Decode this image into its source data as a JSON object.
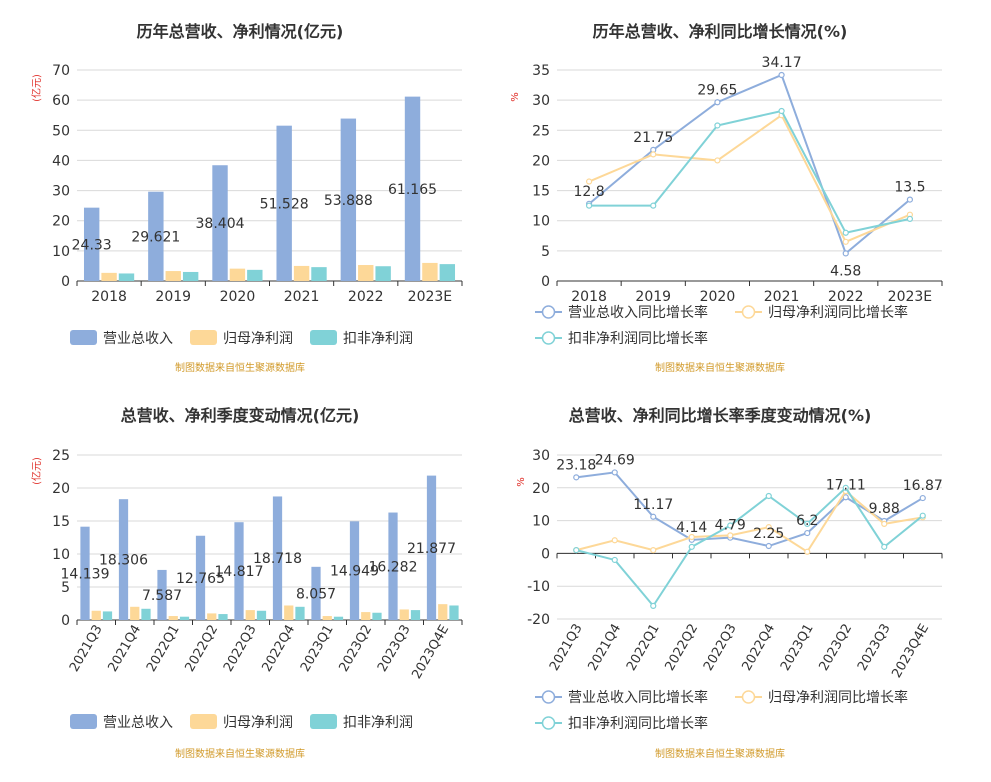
{
  "source_note": "制图数据来自恒生聚源数据库",
  "colors": {
    "revenue": "#8eaddc",
    "net_profit": "#fdd898",
    "deducted_profit": "#80d2d7",
    "grid": "#d9d9d9",
    "axis": "#333333",
    "unit": "#e0302a",
    "note": "#d19a2a"
  },
  "chart_data": [
    {
      "type": "bar",
      "title": "历年总营收、净利情况(亿元)",
      "unit_label": "(亿元)",
      "categories": [
        "2018",
        "2019",
        "2020",
        "2021",
        "2022",
        "2023E"
      ],
      "ylim": [
        0,
        70
      ],
      "yticks": [
        0,
        10,
        20,
        30,
        40,
        50,
        60,
        70
      ],
      "series": [
        {
          "name": "营业总收入",
          "values": [
            24.33,
            29.621,
            38.404,
            51.528,
            53.888,
            61.165
          ],
          "labels": [
            "24.33",
            "29.621",
            "38.404",
            "51.528",
            "53.888",
            "61.165"
          ]
        },
        {
          "name": "归母净利润",
          "values": [
            2.7,
            3.3,
            4.1,
            5.0,
            5.3,
            6.0
          ]
        },
        {
          "name": "扣非净利润",
          "values": [
            2.5,
            3.0,
            3.7,
            4.6,
            4.9,
            5.6
          ]
        }
      ],
      "grid": true,
      "legend": "bottom"
    },
    {
      "type": "line",
      "title": "历年总营收、净利同比增长情况(%)",
      "unit_label": "%",
      "categories": [
        "2018",
        "2019",
        "2020",
        "2021",
        "2022",
        "2023E"
      ],
      "ylim": [
        0,
        35
      ],
      "yticks": [
        0,
        5,
        10,
        15,
        20,
        25,
        30,
        35
      ],
      "series": [
        {
          "name": "营业总收入同比增长率",
          "values": [
            12.8,
            21.75,
            29.65,
            34.17,
            4.58,
            13.5
          ],
          "labels": [
            "12.8",
            "21.75",
            "29.65",
            "34.17",
            "4.58",
            "13.5"
          ]
        },
        {
          "name": "归母净利润同比增长率",
          "values": [
            16.5,
            21.0,
            20.0,
            27.5,
            6.5,
            11.0
          ]
        },
        {
          "name": "扣非净利润同比增长率",
          "values": [
            12.5,
            12.5,
            25.8,
            28.2,
            8.0,
            10.3
          ]
        }
      ],
      "grid": true,
      "legend": "bottom"
    },
    {
      "type": "bar",
      "title": "总营收、净利季度变动情况(亿元)",
      "unit_label": "(亿元)",
      "categories": [
        "2021Q3",
        "2021Q4",
        "2022Q1",
        "2022Q2",
        "2022Q3",
        "2022Q4",
        "2023Q1",
        "2023Q2",
        "2023Q3",
        "2023Q4E"
      ],
      "ylim": [
        0,
        25
      ],
      "yticks": [
        0,
        5,
        10,
        15,
        20,
        25
      ],
      "series": [
        {
          "name": "营业总收入",
          "values": [
            14.139,
            18.306,
            7.587,
            12.765,
            14.817,
            18.718,
            8.057,
            14.949,
            16.282,
            21.877
          ],
          "labels": [
            "14.139",
            "18.306",
            "7.587",
            "12.765",
            "14.817",
            "18.718",
            "8.057",
            "14.949",
            "16.282",
            "21.877"
          ]
        },
        {
          "name": "归母净利润",
          "values": [
            1.4,
            2.0,
            0.6,
            1.0,
            1.5,
            2.2,
            0.6,
            1.2,
            1.6,
            2.4
          ]
        },
        {
          "name": "扣非净利润",
          "values": [
            1.3,
            1.7,
            0.5,
            0.9,
            1.4,
            2.0,
            0.5,
            1.1,
            1.5,
            2.2
          ]
        }
      ],
      "grid": true,
      "legend": "bottom"
    },
    {
      "type": "line",
      "title": "总营收、净利同比增长率季度变动情况(%)",
      "unit_label": "%",
      "categories": [
        "2021Q3",
        "2021Q4",
        "2022Q1",
        "2022Q2",
        "2022Q3",
        "2022Q4",
        "2023Q1",
        "2023Q2",
        "2023Q3",
        "2023Q4E"
      ],
      "ylim": [
        -20,
        30
      ],
      "yticks": [
        -20,
        -10,
        0,
        10,
        20,
        30
      ],
      "series": [
        {
          "name": "营业总收入同比增长率",
          "values": [
            23.18,
            24.69,
            11.17,
            4.14,
            4.79,
            2.25,
            6.2,
            17.11,
            9.88,
            16.87
          ],
          "labels": [
            "23.18",
            "24.69",
            "11.17",
            "4.14",
            "4.79",
            "2.25",
            "6.2",
            "17.11",
            "9.88",
            "16.87"
          ]
        },
        {
          "name": "归母净利润同比增长率",
          "values": [
            1.0,
            4.0,
            1.0,
            5.0,
            5.5,
            8.0,
            0.5,
            19.0,
            9.0,
            11.0
          ]
        },
        {
          "name": "扣非净利润同比增长率",
          "values": [
            1.0,
            -2.0,
            -16.0,
            2.0,
            8.5,
            17.5,
            9.0,
            20.0,
            2.0,
            11.5
          ]
        }
      ],
      "grid": true,
      "legend": "bottom"
    }
  ]
}
